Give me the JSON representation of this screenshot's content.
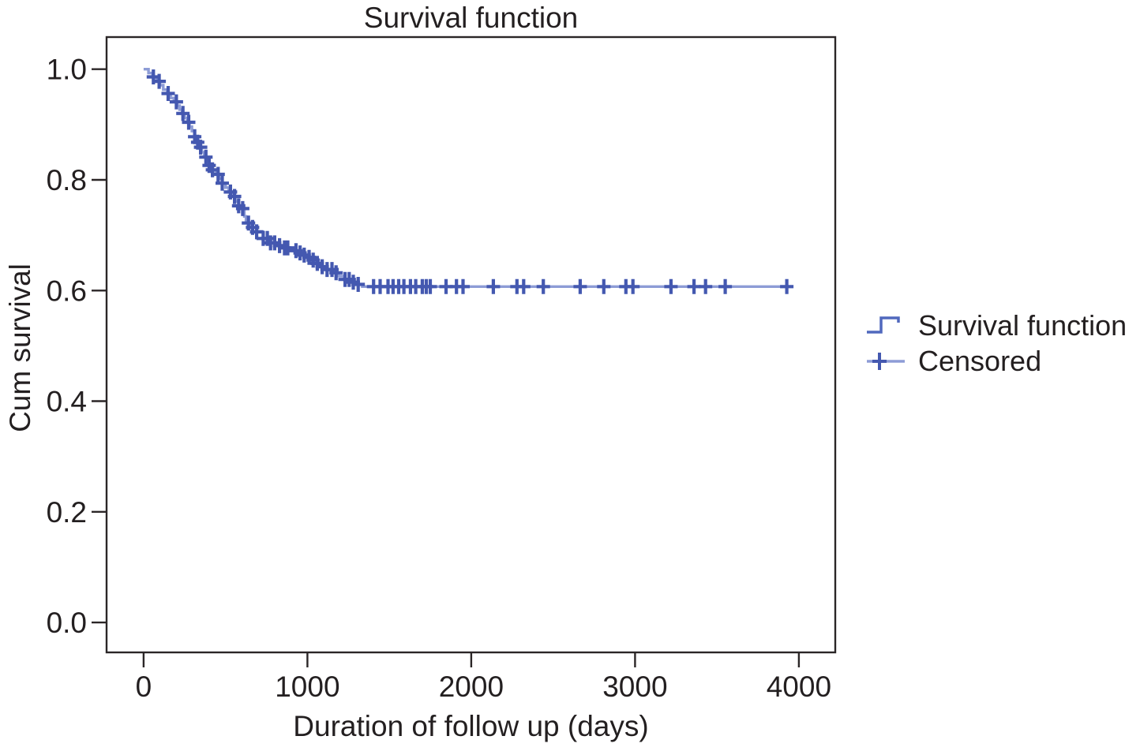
{
  "chart_data": {
    "type": "line",
    "subtype": "kaplan-meier-step",
    "title": "Survival function",
    "xlabel": "Duration of follow up (days)",
    "ylabel": "Cum survival",
    "xlim": [
      -226,
      4222
    ],
    "ylim": [
      -0.054,
      1.058
    ],
    "grid": false,
    "legend_position": "right-center",
    "x_tick_values": [
      0,
      1000,
      2000,
      3000,
      4000
    ],
    "x_tick_labels": [
      "0",
      "1000",
      "2000",
      "3000",
      "4000"
    ],
    "y_tick_values": [
      0.0,
      0.2,
      0.4,
      0.6,
      0.8,
      1.0
    ],
    "y_tick_labels": [
      "0.0",
      "0.2",
      "0.4",
      "0.6",
      "0.8",
      "1.0"
    ],
    "legend": [
      "Survival function",
      "Censored"
    ],
    "series": [
      {
        "name": "Survival function",
        "style": "step",
        "points": [
          [
            0,
            1.0
          ],
          [
            30,
            0.993
          ],
          [
            55,
            0.986
          ],
          [
            80,
            0.978
          ],
          [
            100,
            0.971
          ],
          [
            120,
            0.963
          ],
          [
            145,
            0.956
          ],
          [
            165,
            0.948
          ],
          [
            185,
            0.941
          ],
          [
            205,
            0.934
          ],
          [
            220,
            0.927
          ],
          [
            235,
            0.92
          ],
          [
            250,
            0.912
          ],
          [
            265,
            0.904
          ],
          [
            280,
            0.896
          ],
          [
            295,
            0.888
          ],
          [
            310,
            0.878
          ],
          [
            325,
            0.868
          ],
          [
            340,
            0.859
          ],
          [
            355,
            0.85
          ],
          [
            370,
            0.841
          ],
          [
            385,
            0.833
          ],
          [
            400,
            0.826
          ],
          [
            420,
            0.818
          ],
          [
            440,
            0.81
          ],
          [
            460,
            0.802
          ],
          [
            480,
            0.794
          ],
          [
            500,
            0.786
          ],
          [
            520,
            0.778
          ],
          [
            540,
            0.77
          ],
          [
            560,
            0.761
          ],
          [
            580,
            0.753
          ],
          [
            600,
            0.748
          ],
          [
            615,
            0.734
          ],
          [
            625,
            0.722
          ],
          [
            650,
            0.714
          ],
          [
            690,
            0.706
          ],
          [
            730,
            0.694
          ],
          [
            770,
            0.686
          ],
          [
            820,
            0.681
          ],
          [
            860,
            0.677
          ],
          [
            900,
            0.672
          ],
          [
            940,
            0.668
          ],
          [
            970,
            0.664
          ],
          [
            1000,
            0.66
          ],
          [
            1030,
            0.655
          ],
          [
            1060,
            0.649
          ],
          [
            1090,
            0.643
          ],
          [
            1120,
            0.638
          ],
          [
            1155,
            0.632
          ],
          [
            1190,
            0.626
          ],
          [
            1225,
            0.62
          ],
          [
            1260,
            0.615
          ],
          [
            1300,
            0.611
          ],
          [
            1335,
            0.607
          ],
          [
            3960,
            0.607
          ]
        ]
      }
    ],
    "censored_days": [
      60,
      95,
      150,
      200,
      240,
      275,
      312,
      330,
      348,
      380,
      400,
      420,
      455,
      480,
      530,
      555,
      580,
      605,
      640,
      665,
      690,
      730,
      755,
      775,
      800,
      830,
      860,
      880,
      930,
      955,
      980,
      1010,
      1035,
      1060,
      1090,
      1120,
      1150,
      1175,
      1230,
      1255,
      1280,
      1310,
      1404,
      1444,
      1492,
      1523,
      1557,
      1589,
      1629,
      1661,
      1701,
      1725,
      1750,
      1846,
      1910,
      1950,
      2135,
      2279,
      2320,
      2440,
      2665,
      2809,
      2944,
      2987,
      3219,
      3360,
      3430,
      3550,
      3926
    ]
  },
  "colors": {
    "curve_line": "#8D9CD6",
    "censor_mark": "#4458B0",
    "legend_step": "#5068BD",
    "axis_frame": "#2B2627",
    "text": "#231F20"
  }
}
